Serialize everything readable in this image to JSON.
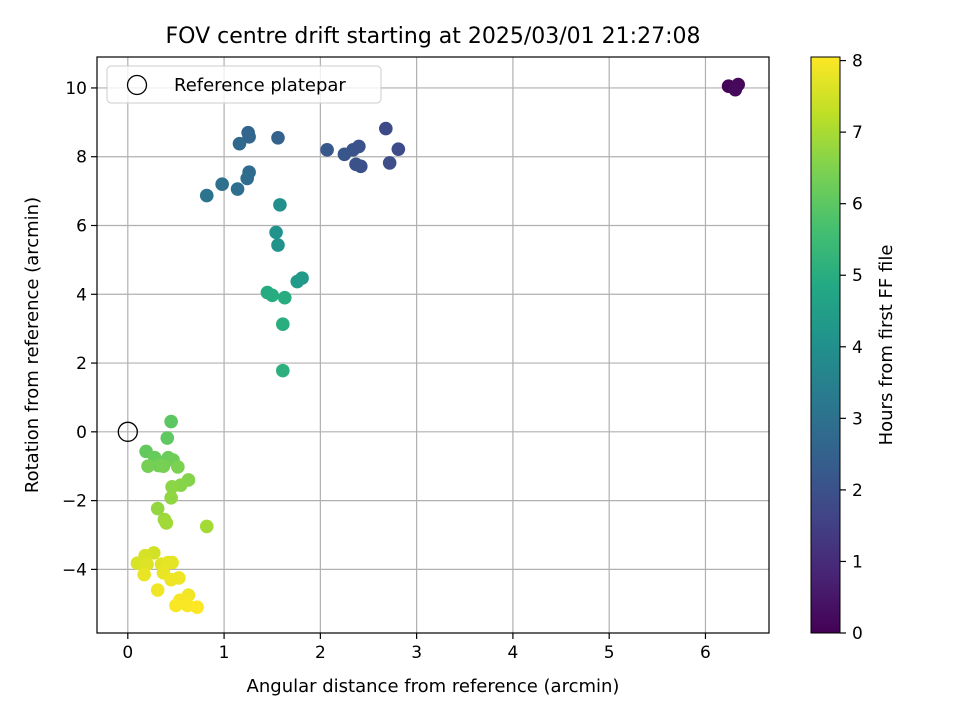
{
  "chart_data": {
    "type": "scatter",
    "title": "FOV centre drift starting at 2025/03/01 21:27:08",
    "xlabel": "Angular distance from reference (arcmin)",
    "ylabel": "Rotation from reference (arcmin)",
    "xlim": [
      -0.32,
      6.66
    ],
    "ylim": [
      -5.85,
      10.9
    ],
    "xticks": [
      0,
      1,
      2,
      3,
      4,
      5,
      6
    ],
    "yticks": [
      -4,
      -2,
      0,
      2,
      4,
      6,
      8,
      10
    ],
    "grid": true,
    "legend": {
      "placement": "top-left",
      "entries": [
        "Reference platepar"
      ]
    },
    "reference_point": {
      "x": 0,
      "y": 0,
      "marker": "open-circle",
      "color": "#000000"
    },
    "colorbar": {
      "label": "Hours from first FF file",
      "colormap": "viridis",
      "range": [
        0,
        8.05
      ],
      "ticks": [
        0,
        1,
        2,
        3,
        4,
        5,
        6,
        7,
        8
      ]
    },
    "series": [
      {
        "points": [
          {
            "x": 6.24,
            "y": 10.05,
            "c": 0.05
          },
          {
            "x": 6.3,
            "y": 10.02,
            "c": 0.1
          },
          {
            "x": 6.34,
            "y": 10.1,
            "c": 0.15
          },
          {
            "x": 6.31,
            "y": 9.95,
            "c": 0.2
          },
          {
            "x": 2.68,
            "y": 8.82,
            "c": 1.8
          },
          {
            "x": 2.81,
            "y": 8.22,
            "c": 1.85
          },
          {
            "x": 2.72,
            "y": 7.82,
            "c": 1.9
          },
          {
            "x": 2.42,
            "y": 7.72,
            "c": 1.95
          },
          {
            "x": 2.37,
            "y": 7.78,
            "c": 2.0
          },
          {
            "x": 2.4,
            "y": 8.3,
            "c": 2.05
          },
          {
            "x": 2.34,
            "y": 8.2,
            "c": 2.1
          },
          {
            "x": 2.25,
            "y": 8.07,
            "c": 2.15
          },
          {
            "x": 2.07,
            "y": 8.2,
            "c": 2.25
          },
          {
            "x": 1.56,
            "y": 8.55,
            "c": 2.5
          },
          {
            "x": 1.25,
            "y": 8.7,
            "c": 2.6
          },
          {
            "x": 1.26,
            "y": 8.58,
            "c": 2.65
          },
          {
            "x": 1.16,
            "y": 8.38,
            "c": 2.7
          },
          {
            "x": 1.26,
            "y": 7.55,
            "c": 2.8
          },
          {
            "x": 1.24,
            "y": 7.37,
            "c": 2.85
          },
          {
            "x": 1.14,
            "y": 7.06,
            "c": 2.9
          },
          {
            "x": 0.98,
            "y": 7.2,
            "c": 2.95
          },
          {
            "x": 0.82,
            "y": 6.87,
            "c": 3.05
          },
          {
            "x": 1.58,
            "y": 6.6,
            "c": 4.0
          },
          {
            "x": 1.54,
            "y": 5.8,
            "c": 4.05
          },
          {
            "x": 1.56,
            "y": 5.43,
            "c": 4.1
          },
          {
            "x": 1.81,
            "y": 4.47,
            "c": 4.3
          },
          {
            "x": 1.76,
            "y": 4.37,
            "c": 4.35
          },
          {
            "x": 1.45,
            "y": 4.05,
            "c": 4.9
          },
          {
            "x": 1.5,
            "y": 3.97,
            "c": 4.95
          },
          {
            "x": 1.63,
            "y": 3.9,
            "c": 5.0
          },
          {
            "x": 1.61,
            "y": 3.13,
            "c": 5.05
          },
          {
            "x": 1.61,
            "y": 1.78,
            "c": 5.1
          },
          {
            "x": 0.45,
            "y": 0.3,
            "c": 6.0
          },
          {
            "x": 0.41,
            "y": -0.18,
            "c": 6.05
          },
          {
            "x": 0.19,
            "y": -0.57,
            "c": 6.1
          },
          {
            "x": 0.28,
            "y": -0.75,
            "c": 6.15
          },
          {
            "x": 0.42,
            "y": -0.75,
            "c": 6.2
          },
          {
            "x": 0.47,
            "y": -0.82,
            "c": 6.25
          },
          {
            "x": 0.32,
            "y": -0.98,
            "c": 6.3
          },
          {
            "x": 0.21,
            "y": -1.0,
            "c": 6.35
          },
          {
            "x": 0.37,
            "y": -1.0,
            "c": 6.4
          },
          {
            "x": 0.52,
            "y": -1.02,
            "c": 6.45
          },
          {
            "x": 0.63,
            "y": -1.4,
            "c": 6.55
          },
          {
            "x": 0.55,
            "y": -1.55,
            "c": 6.6
          },
          {
            "x": 0.46,
            "y": -1.6,
            "c": 6.65
          },
          {
            "x": 0.45,
            "y": -1.92,
            "c": 6.7
          },
          {
            "x": 0.31,
            "y": -2.23,
            "c": 6.75
          },
          {
            "x": 0.38,
            "y": -2.55,
            "c": 6.85
          },
          {
            "x": 0.4,
            "y": -2.65,
            "c": 6.9
          },
          {
            "x": 0.82,
            "y": -2.75,
            "c": 6.95
          },
          {
            "x": 0.27,
            "y": -3.52,
            "c": 7.5
          },
          {
            "x": 0.18,
            "y": -3.6,
            "c": 7.55
          },
          {
            "x": 0.1,
            "y": -3.82,
            "c": 7.6
          },
          {
            "x": 0.2,
            "y": -3.85,
            "c": 7.65
          },
          {
            "x": 0.35,
            "y": -3.85,
            "c": 7.7
          },
          {
            "x": 0.42,
            "y": -3.8,
            "c": 7.75
          },
          {
            "x": 0.46,
            "y": -3.8,
            "c": 7.75
          },
          {
            "x": 0.37,
            "y": -4.1,
            "c": 7.8
          },
          {
            "x": 0.17,
            "y": -4.15,
            "c": 7.8
          },
          {
            "x": 0.45,
            "y": -4.3,
            "c": 7.85
          },
          {
            "x": 0.53,
            "y": -4.25,
            "c": 7.85
          },
          {
            "x": 0.31,
            "y": -4.6,
            "c": 7.9
          },
          {
            "x": 0.63,
            "y": -4.75,
            "c": 7.9
          },
          {
            "x": 0.54,
            "y": -4.9,
            "c": 7.95
          },
          {
            "x": 0.6,
            "y": -4.95,
            "c": 7.95
          },
          {
            "x": 0.5,
            "y": -5.05,
            "c": 8.0
          },
          {
            "x": 0.62,
            "y": -5.05,
            "c": 8.0
          },
          {
            "x": 0.72,
            "y": -5.1,
            "c": 8.05
          }
        ]
      }
    ]
  }
}
